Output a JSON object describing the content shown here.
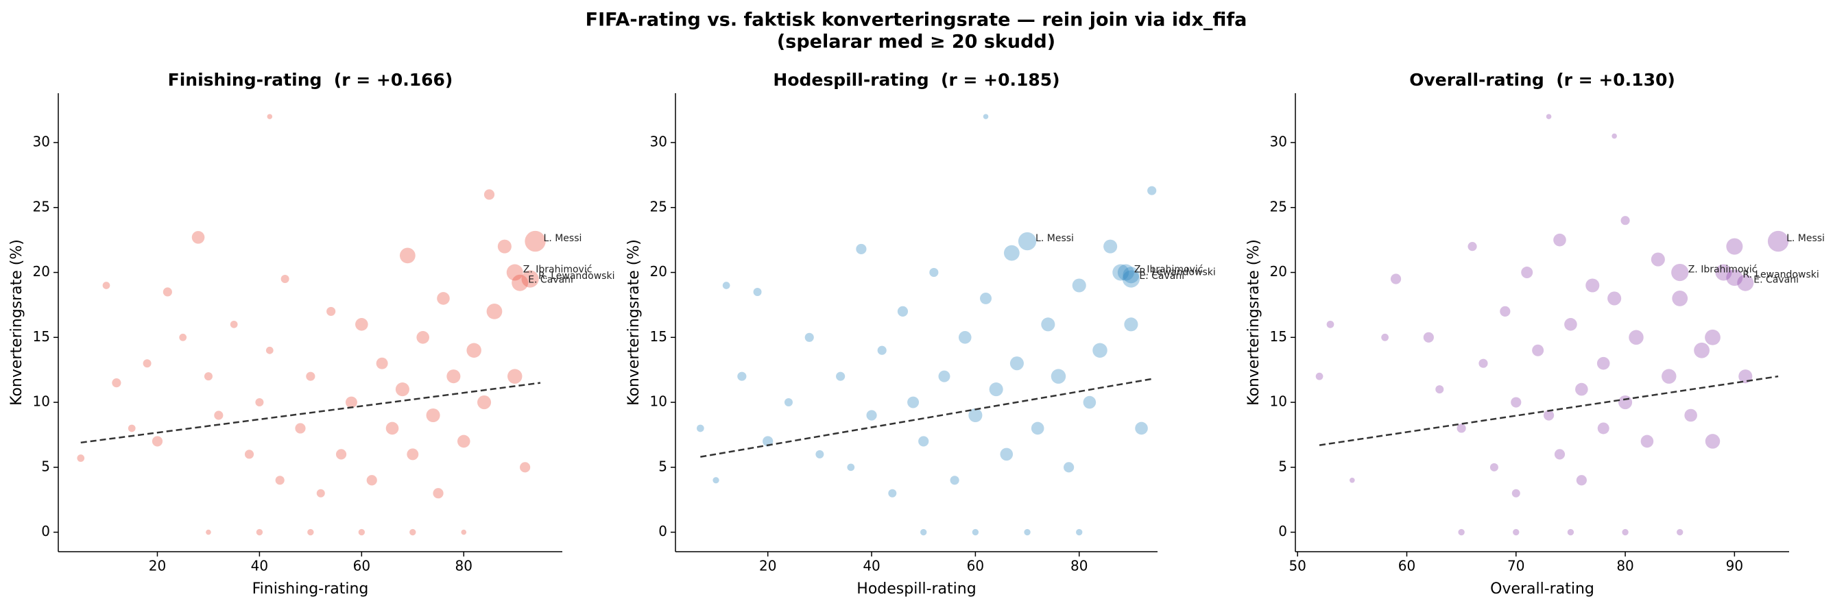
{
  "title": "FIFA-rating vs. faktisk konverteringsrate — rein join via idx_fifa",
  "subtitle": "(spelarar med ≥ 20 skudd)",
  "chart_data": [
    {
      "type": "scatter",
      "title": "Finishing-rating  (r = +0.166)",
      "x_label": "Finishing-rating",
      "y_label": "Konverteringsrate (%)",
      "color": "#e74c3c",
      "xlim": [
        0.6,
        99.3
      ],
      "ylim": [
        -1.5,
        33.8
      ],
      "xticks": [
        20,
        40,
        60,
        80
      ],
      "yticks": [
        0,
        5,
        10,
        15,
        20,
        25,
        30
      ],
      "x": [
        5,
        10,
        12,
        15,
        18,
        20,
        22,
        25,
        28,
        30,
        32,
        35,
        38,
        40,
        42,
        44,
        45,
        48,
        50,
        52,
        54,
        56,
        58,
        60,
        62,
        64,
        66,
        68,
        69,
        70,
        72,
        74,
        75,
        76,
        78,
        80,
        82,
        84,
        85,
        86,
        88,
        90,
        92,
        94,
        93,
        91,
        90,
        30,
        40,
        50,
        60,
        70,
        80,
        42
      ],
      "values": [
        5.7,
        19,
        11.5,
        8,
        13,
        7,
        18.5,
        15,
        22.7,
        12,
        9,
        16,
        6,
        10,
        14,
        4,
        19.5,
        8,
        12,
        3,
        17,
        6,
        10,
        16,
        4,
        13,
        8,
        11,
        21.3,
        6,
        15,
        9,
        3,
        18,
        12,
        7,
        14,
        10,
        26,
        17,
        22,
        12,
        5,
        22.4,
        19.5,
        19.2,
        20,
        0,
        0,
        0,
        0,
        0,
        0,
        32
      ],
      "sizes": [
        20,
        20,
        30,
        20,
        25,
        40,
        30,
        20,
        60,
        25,
        30,
        20,
        30,
        25,
        20,
        30,
        25,
        40,
        30,
        25,
        30,
        40,
        50,
        60,
        40,
        50,
        60,
        70,
        90,
        50,
        60,
        70,
        40,
        60,
        70,
        60,
        80,
        70,
        40,
        90,
        70,
        80,
        40,
        160,
        110,
        100,
        100,
        10,
        15,
        15,
        15,
        15,
        10,
        10
      ],
      "trend": {
        "x": [
          5,
          95
        ],
        "y": [
          6.9,
          11.5
        ]
      },
      "annotations": [
        {
          "text": "L. Messi",
          "x": 94,
          "y": 22.4
        },
        {
          "text": "Z. Ibrahimović",
          "x": 90,
          "y": 20
        },
        {
          "text": "E. Cavani",
          "x": 91,
          "y": 19.2
        },
        {
          "text": "R. Lewandowski",
          "x": 93,
          "y": 19.5
        }
      ]
    },
    {
      "type": "scatter",
      "title": "Hodespill-rating  (r = +0.185)",
      "x_label": "Hodespill-rating",
      "y_label": "Konverteringsrate (%)",
      "color": "#2e86c1",
      "xlim": [
        2.2,
        95.1
      ],
      "ylim": [
        -1.5,
        33.8
      ],
      "xticks": [
        20,
        40,
        60,
        80
      ],
      "yticks": [
        0,
        5,
        10,
        15,
        20,
        25,
        30
      ],
      "x": [
        7,
        10,
        12,
        15,
        18,
        20,
        24,
        28,
        30,
        34,
        36,
        38,
        40,
        42,
        44,
        46,
        48,
        50,
        52,
        54,
        56,
        58,
        60,
        62,
        64,
        66,
        67,
        68,
        70,
        72,
        74,
        76,
        78,
        80,
        82,
        84,
        86,
        88,
        90,
        92,
        94,
        89,
        90,
        90,
        50,
        60,
        70,
        80,
        62
      ],
      "values": [
        8,
        4,
        19,
        12,
        18.5,
        7,
        10,
        15,
        6,
        12,
        5,
        21.8,
        9,
        14,
        3,
        17,
        10,
        7,
        20,
        12,
        4,
        15,
        9,
        18,
        11,
        6,
        21.5,
        13,
        22.4,
        8,
        16,
        12,
        5,
        19,
        10,
        14,
        22,
        20,
        19.5,
        8,
        26.3,
        20,
        19.8,
        16,
        0,
        0,
        0,
        0,
        32
      ],
      "sizes": [
        20,
        15,
        20,
        30,
        25,
        40,
        25,
        30,
        25,
        30,
        20,
        40,
        40,
        30,
        25,
        40,
        50,
        40,
        30,
        50,
        30,
        60,
        70,
        50,
        70,
        60,
        90,
        70,
        120,
        60,
        70,
        80,
        40,
        70,
        60,
        80,
        70,
        100,
        110,
        60,
        30,
        100,
        100,
        70,
        15,
        15,
        15,
        15,
        10
      ],
      "trend": {
        "x": [
          7,
          94
        ],
        "y": [
          5.8,
          11.8
        ]
      },
      "annotations": [
        {
          "text": "L. Messi",
          "x": 70,
          "y": 22.4
        },
        {
          "text": "Z. Ibrahimović",
          "x": 89,
          "y": 20
        },
        {
          "text": "E. Cavani",
          "x": 90,
          "y": 19.5
        },
        {
          "text": "R. Lewandowski",
          "x": 90,
          "y": 19.8
        }
      ]
    },
    {
      "type": "scatter",
      "title": "Overall-rating  (r = +0.130)",
      "x_label": "Overall-rating",
      "y_label": "Konverteringsrate (%)",
      "color": "#8e44ad",
      "xlim": [
        49.8,
        95.0
      ],
      "ylim": [
        -1.5,
        33.8
      ],
      "xticks": [
        50,
        60,
        70,
        80,
        90
      ],
      "yticks": [
        0,
        5,
        10,
        15,
        20,
        25,
        30
      ],
      "x": [
        52,
        53,
        55,
        58,
        59,
        62,
        63,
        65,
        66,
        67,
        68,
        69,
        70,
        70,
        71,
        72,
        73,
        74,
        74,
        75,
        76,
        76,
        77,
        78,
        78,
        79,
        80,
        80,
        81,
        82,
        83,
        84,
        85,
        86,
        87,
        88,
        88,
        89,
        90,
        91,
        94,
        85,
        91,
        90,
        65,
        70,
        75,
        80,
        85,
        73,
        79
      ],
      "values": [
        12,
        16,
        4,
        15,
        19.5,
        15,
        11,
        8,
        22,
        13,
        5,
        17,
        10,
        3,
        20,
        14,
        9,
        22.5,
        6,
        16,
        11,
        4,
        19,
        13,
        8,
        18,
        10,
        24,
        15,
        7,
        21,
        12,
        18,
        9,
        14,
        15,
        7,
        20,
        22,
        12,
        22.4,
        20,
        19.2,
        19.6,
        0,
        0,
        0,
        0,
        0,
        32,
        30.5
      ],
      "sizes": [
        20,
        20,
        10,
        20,
        40,
        40,
        25,
        30,
        30,
        30,
        25,
        40,
        40,
        25,
        50,
        50,
        40,
        60,
        40,
        60,
        60,
        40,
        70,
        60,
        50,
        70,
        70,
        30,
        80,
        60,
        70,
        80,
        90,
        60,
        90,
        90,
        80,
        100,
        100,
        70,
        160,
        110,
        100,
        100,
        15,
        15,
        15,
        15,
        15,
        10,
        10
      ],
      "trend": {
        "x": [
          52,
          94
        ],
        "y": [
          6.7,
          12
        ]
      },
      "annotations": [
        {
          "text": "L. Messi",
          "x": 94,
          "y": 22.4
        },
        {
          "text": "Z. Ibrahimović",
          "x": 85,
          "y": 20
        },
        {
          "text": "E. Cavani",
          "x": 91,
          "y": 19.2
        },
        {
          "text": "R. Lewandowski",
          "x": 90,
          "y": 19.6
        }
      ]
    }
  ]
}
